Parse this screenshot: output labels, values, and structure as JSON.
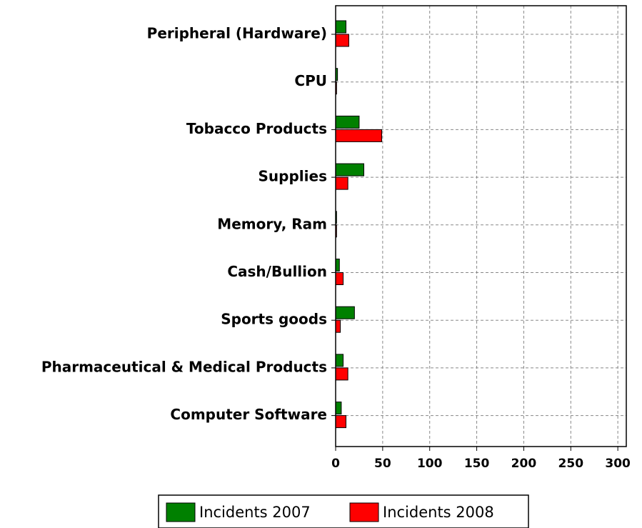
{
  "chart_data": {
    "type": "bar",
    "orientation": "horizontal",
    "categories": [
      "Peripheral (Hardware)",
      "CPU",
      "Tobacco Products",
      "Supplies",
      "Memory, Ram",
      "Cash/Bullion",
      "Sports goods",
      "Pharmaceutical & Medical Products",
      "Computer Software"
    ],
    "series": [
      {
        "name": "Incidents 2007",
        "color": "#008000",
        "values": [
          11,
          2,
          25,
          30,
          1,
          4,
          20,
          8,
          6
        ]
      },
      {
        "name": "Incidents 2008",
        "color": "#ff0000",
        "values": [
          14,
          1,
          49,
          13,
          1,
          8,
          5,
          13,
          11
        ]
      }
    ],
    "xlim": [
      0,
      309
    ],
    "xticks": [
      0,
      50,
      100,
      150,
      200,
      250,
      300
    ],
    "grid": true,
    "legend": "bottom"
  }
}
